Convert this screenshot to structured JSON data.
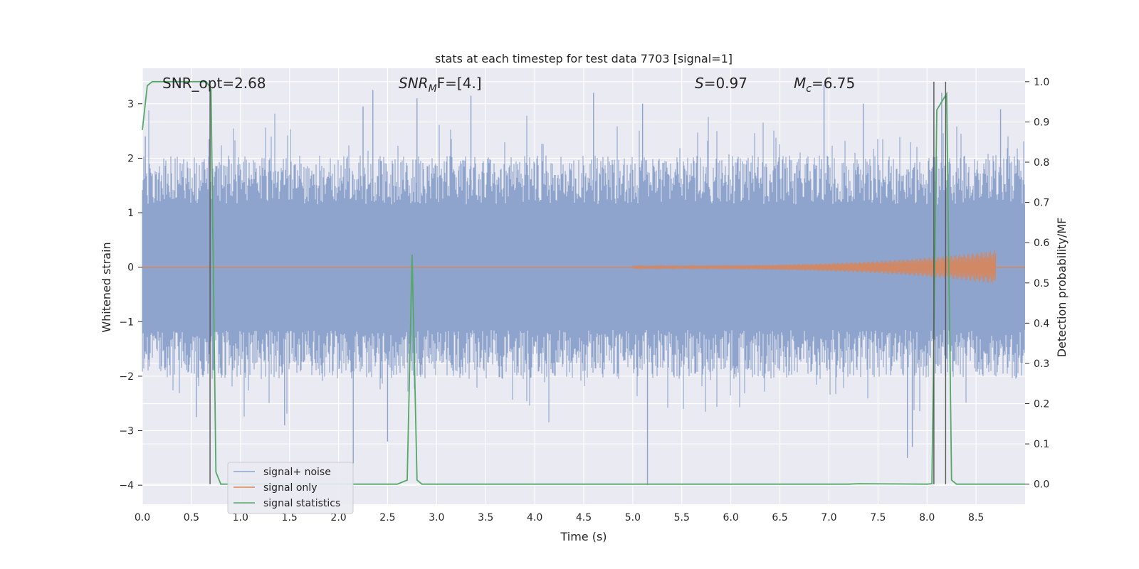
{
  "chart_data": {
    "type": "line",
    "title": "stats at each timestep for test data 7703 [signal=1]",
    "xlabel": "Time (s)",
    "ylabel": "Whitened strain",
    "y2label": "Detection probability/MF",
    "xlim": [
      0.0,
      9.0
    ],
    "ylim": [
      -4.35,
      3.65
    ],
    "y2lim": [
      -0.05,
      1.0333
    ],
    "xticks": [
      "0.0",
      "0.5",
      "1.0",
      "1.5",
      "2.0",
      "2.5",
      "3.0",
      "3.5",
      "4.0",
      "4.5",
      "5.0",
      "5.5",
      "6.0",
      "6.5",
      "7.0",
      "7.5",
      "8.0",
      "8.5"
    ],
    "yticks": [
      "3",
      "2",
      "1",
      "0",
      "−1",
      "−2",
      "−3",
      "−4"
    ],
    "y2ticks": [
      "1.0",
      "0.9",
      "0.8",
      "0.7",
      "0.6",
      "0.5",
      "0.4",
      "0.3",
      "0.2",
      "0.1",
      "0.0"
    ],
    "grid": true,
    "legend_position": "lower-left",
    "annotations": {
      "snr_opt": "SNR_opt=2.68",
      "snr_mf_base": "SNR",
      "snr_mf_sub": "M",
      "snr_mf_rest": "F=[4.]",
      "s_base": "S",
      "s_rest": "=0.97",
      "mc_base": "M",
      "mc_sub": "c",
      "mc_rest": "=6.75"
    },
    "colors": {
      "noise": "#8fa4cc",
      "signal": "#dd8452",
      "stats": "#55a868",
      "vline": "#555555",
      "background": "#eaeaf2",
      "grid": "#ffffff"
    },
    "series": [
      {
        "name": "signal+ noise",
        "kind": "noise",
        "x_range": [
          0.0,
          9.0
        ],
        "typical_amplitude": 1.15,
        "peak_points": [
          {
            "x": 0.03,
            "y": 2.4
          },
          {
            "x": 0.55,
            "y": -2.75
          },
          {
            "x": 0.68,
            "y": 2.35
          },
          {
            "x": 1.45,
            "y": -2.9
          },
          {
            "x": 2.15,
            "y": -3.6
          },
          {
            "x": 2.25,
            "y": 2.95
          },
          {
            "x": 2.35,
            "y": 3.25
          },
          {
            "x": 2.5,
            "y": -3.2
          },
          {
            "x": 2.8,
            "y": 3.1
          },
          {
            "x": 3.35,
            "y": 3.15
          },
          {
            "x": 4.6,
            "y": 3.2
          },
          {
            "x": 5.1,
            "y": 3.0
          },
          {
            "x": 5.15,
            "y": -4.0
          },
          {
            "x": 6.95,
            "y": 3.35
          },
          {
            "x": 7.35,
            "y": 3.0
          },
          {
            "x": 7.8,
            "y": -3.5
          },
          {
            "x": 7.85,
            "y": -3.3
          },
          {
            "x": 8.15,
            "y": 3.2
          },
          {
            "x": 8.75,
            "y": 2.9
          }
        ]
      },
      {
        "name": "signal only",
        "kind": "chirp",
        "start_x": 5.0,
        "peak_x": 8.7,
        "peak_amplitude": 0.28
      },
      {
        "name": "signal statistics",
        "kind": "stats",
        "axis": "right",
        "x": [
          0.0,
          0.05,
          0.1,
          0.2,
          0.4,
          0.55,
          0.65,
          0.68,
          0.7,
          0.75,
          0.8,
          0.85,
          1.0,
          2.5,
          2.6,
          2.7,
          2.75,
          2.8,
          2.85,
          5.3,
          6.7,
          6.9,
          7.2,
          7.3,
          8.0,
          8.05,
          8.1,
          8.15,
          8.2,
          8.25,
          8.3,
          9.0
        ],
        "y": [
          0.88,
          0.99,
          1.0,
          1.0,
          1.0,
          1.0,
          1.0,
          0.99,
          0.98,
          0.03,
          0.0,
          0.0,
          0.0,
          0.0,
          0.0,
          0.01,
          0.57,
          0.01,
          0.0,
          0.0,
          0.0,
          0.0,
          0.0,
          0.001,
          0.0,
          0.001,
          0.93,
          0.95,
          0.97,
          0.01,
          0.0,
          0.0
        ]
      }
    ],
    "vlines": [
      0.69,
      8.07,
      8.19
    ]
  }
}
